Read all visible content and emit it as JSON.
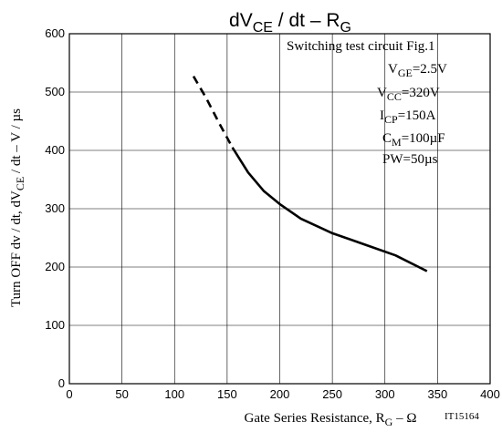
{
  "chart_data": {
    "type": "line",
    "title": {
      "pre": "dV",
      "sub1": "CE",
      "mid": " / dt  –  R",
      "sub2": "G"
    },
    "xlabel": {
      "pre": "Gate Series Resistance, R",
      "sub": "G",
      "post": "  –  Ω"
    },
    "ylabel": {
      "pre": "Turn OFF dv / dt, dV",
      "sub": "CE",
      "post": " / dt  –  V / µs"
    },
    "code": "IT15164",
    "xlim": [
      0,
      400
    ],
    "ylim": [
      0,
      600
    ],
    "x_ticks": [
      "0",
      "50",
      "100",
      "150",
      "200",
      "250",
      "300",
      "350",
      "400"
    ],
    "y_ticks": [
      "0",
      "100",
      "200",
      "300",
      "400",
      "500",
      "600"
    ],
    "grid": true,
    "conditions": [
      {
        "pre": "Switching test circuit Fig.1",
        "sub": "",
        "post": ""
      },
      {
        "pre": "V",
        "sub": "GE",
        "post": "=2.5V"
      },
      {
        "pre": "V",
        "sub": "CC",
        "post": "=320V"
      },
      {
        "pre": "I",
        "sub": "CP",
        "post": "=150A"
      },
      {
        "pre": "C",
        "sub": "M",
        "post": "=100µF"
      },
      {
        "pre": "PW=50µs",
        "sub": "",
        "post": ""
      }
    ],
    "series": [
      {
        "style": "dashed",
        "x": [
          118,
          130,
          142,
          155
        ],
        "y": [
          527,
          490,
          448,
          405
        ]
      },
      {
        "style": "solid",
        "x": [
          155,
          170,
          185,
          200,
          220,
          250,
          280,
          310,
          340
        ],
        "y": [
          405,
          362,
          330,
          308,
          283,
          258,
          239,
          220,
          193
        ]
      }
    ],
    "line_color": "#000000"
  }
}
